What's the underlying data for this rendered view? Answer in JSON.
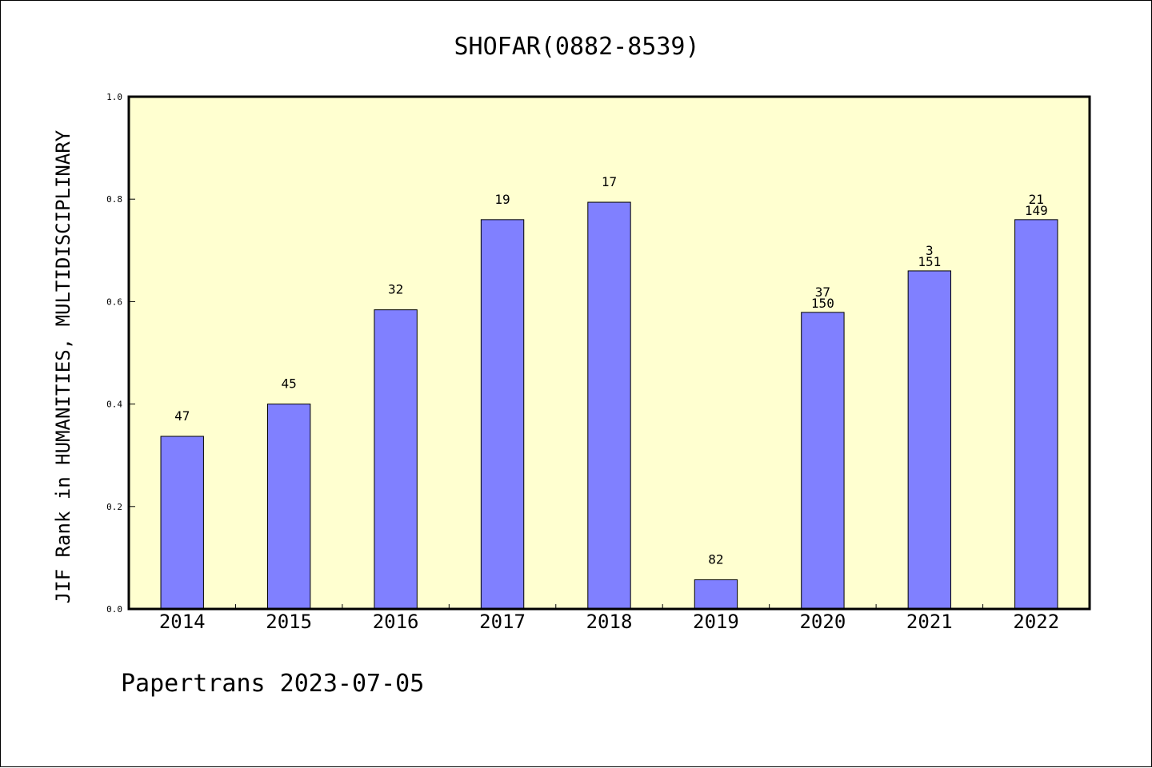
{
  "chart_data": {
    "type": "bar",
    "title": "SHOFAR(0882-8539)",
    "ylabel": "JIF Rank in HUMANITIES, MULTIDISCIPLINARY",
    "xlabel": "",
    "ylim": [
      0,
      1.0
    ],
    "yticks": [
      "0.0",
      "0.2",
      "0.4",
      "0.6",
      "0.8",
      "1.0"
    ],
    "categories": [
      "2014",
      "2015",
      "2016",
      "2017",
      "2018",
      "2019",
      "2020",
      "2021",
      "2022"
    ],
    "values": [
      0.337,
      0.4,
      0.584,
      0.76,
      0.794,
      0.057,
      0.579,
      0.66,
      0.76
    ],
    "labels_top": [
      "47",
      "45",
      "32",
      "19",
      "17",
      "82",
      "37",
      "3",
      "21"
    ],
    "labels_bottom": [
      "",
      "",
      "",
      "",
      "",
      "",
      "150",
      "151",
      "149"
    ],
    "colors": {
      "plot_background": "#ffffd0",
      "bar_fill": "#8080ff",
      "bar_stroke": "#000000"
    }
  },
  "footer": "Papertrans 2023-07-05"
}
